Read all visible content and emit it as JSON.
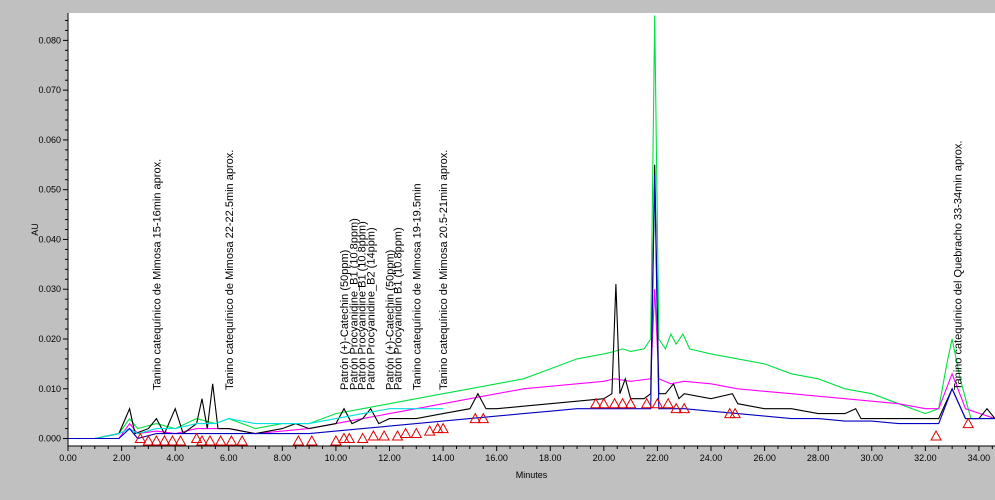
{
  "chart_data": {
    "type": "line",
    "xlabel": "Minutes",
    "ylabel": "AU",
    "xlim": [
      0,
      34.6
    ],
    "ylim": [
      -0.0015,
      0.0855
    ],
    "x_ticks": [
      "0.00",
      "2.00",
      "4.00",
      "6.00",
      "8.00",
      "10.00",
      "12.00",
      "14.00",
      "16.00",
      "18.00",
      "20.00",
      "22.00",
      "24.00",
      "26.00",
      "28.00",
      "30.00",
      "32.00",
      "34.00"
    ],
    "y_ticks": [
      "0.000",
      "0.010",
      "0.020",
      "0.030",
      "0.040",
      "0.050",
      "0.060",
      "0.070",
      "0.080"
    ],
    "grid": false,
    "legend": "none",
    "annotations": [
      {
        "x": 3.3,
        "text": "Tanino catequínico de Mimosa 15-16min aprox."
      },
      {
        "x": 6.0,
        "text": "Tanino catequínico de Mimosa 22-22.5min aprox."
      },
      {
        "x": 10.3,
        "text": "Patrón (+)-Catechin (50ppm)"
      },
      {
        "x": 10.65,
        "text": "Patrón Procyanidine_B1 (10.8ppm)"
      },
      {
        "x": 10.95,
        "text": "Patrón Procyanidine B1 (10.8ppm)"
      },
      {
        "x": 11.3,
        "text": "Patrón Procyanidine_B2 (14ppm)"
      },
      {
        "x": 12.0,
        "text": "Patrón (+)-Catechin (50ppm)"
      },
      {
        "x": 12.3,
        "text": "Patrón Procyanidin B1 (10.8ppm)"
      },
      {
        "x": 13.0,
        "text": "Tanino catequínico de Mimosa 19-19.5min"
      },
      {
        "x": 14.0,
        "text": "Tanino catequínico de Mimosa 20.5-21min aprox."
      },
      {
        "x": 33.2,
        "text": "Tanino catequínico del Quebracho 33-34min aprox."
      }
    ],
    "series": [
      {
        "color": "#00e040",
        "points": [
          [
            0,
            0
          ],
          [
            1,
            0
          ],
          [
            1.9,
            0.001
          ],
          [
            2.3,
            0.004
          ],
          [
            2.6,
            0.002
          ],
          [
            3.3,
            0.003
          ],
          [
            4.0,
            0.002
          ],
          [
            4.8,
            0.004
          ],
          [
            5.5,
            0.003
          ],
          [
            6.0,
            0.004
          ],
          [
            7.0,
            0.002
          ],
          [
            8.0,
            0.003
          ],
          [
            9.0,
            0.003
          ],
          [
            10.0,
            0.005
          ],
          [
            11.0,
            0.006
          ],
          [
            12.0,
            0.007
          ],
          [
            13.0,
            0.008
          ],
          [
            14.0,
            0.009
          ],
          [
            15.0,
            0.01
          ],
          [
            16.0,
            0.011
          ],
          [
            17.0,
            0.012
          ],
          [
            18.0,
            0.014
          ],
          [
            19.0,
            0.016
          ],
          [
            20.0,
            0.017
          ],
          [
            20.4,
            0.0175
          ],
          [
            20.7,
            0.018
          ],
          [
            21.0,
            0.0175
          ],
          [
            21.5,
            0.018
          ],
          [
            21.75,
            0.02
          ],
          [
            21.9,
            0.085
          ],
          [
            22.05,
            0.02
          ],
          [
            22.3,
            0.018
          ],
          [
            22.5,
            0.021
          ],
          [
            22.7,
            0.019
          ],
          [
            22.95,
            0.021
          ],
          [
            23.2,
            0.018
          ],
          [
            24.0,
            0.017
          ],
          [
            25.0,
            0.016
          ],
          [
            26.0,
            0.015
          ],
          [
            27.0,
            0.013
          ],
          [
            28.0,
            0.012
          ],
          [
            29.0,
            0.01
          ],
          [
            30.0,
            0.009
          ],
          [
            31.0,
            0.007
          ],
          [
            32.0,
            0.005
          ],
          [
            32.5,
            0.006
          ],
          [
            32.8,
            0.015
          ],
          [
            33.0,
            0.02
          ],
          [
            33.3,
            0.012
          ],
          [
            33.7,
            0.004
          ],
          [
            34.6,
            0.004
          ]
        ]
      },
      {
        "color": "#ff00ff",
        "points": [
          [
            0,
            0
          ],
          [
            1,
            0
          ],
          [
            1.9,
            0
          ],
          [
            2.3,
            0.003
          ],
          [
            2.6,
            0.001
          ],
          [
            3.3,
            0.0015
          ],
          [
            4.0,
            0.001
          ],
          [
            4.8,
            0.002
          ],
          [
            5.5,
            0.002
          ],
          [
            6.0,
            0.002
          ],
          [
            7.0,
            0.001
          ],
          [
            8.0,
            0.0015
          ],
          [
            9.0,
            0.002
          ],
          [
            10.0,
            0.003
          ],
          [
            11.0,
            0.004
          ],
          [
            12.0,
            0.005
          ],
          [
            13.0,
            0.006
          ],
          [
            14.0,
            0.007
          ],
          [
            15.0,
            0.008
          ],
          [
            16.0,
            0.009
          ],
          [
            17.0,
            0.01
          ],
          [
            18.0,
            0.0105
          ],
          [
            19.0,
            0.011
          ],
          [
            20.0,
            0.0115
          ],
          [
            20.4,
            0.012
          ],
          [
            21.0,
            0.0115
          ],
          [
            21.75,
            0.012
          ],
          [
            21.9,
            0.03
          ],
          [
            22.05,
            0.012
          ],
          [
            22.5,
            0.011
          ],
          [
            23.0,
            0.0115
          ],
          [
            24.0,
            0.011
          ],
          [
            25.0,
            0.01
          ],
          [
            26.0,
            0.0095
          ],
          [
            27.0,
            0.009
          ],
          [
            28.0,
            0.0085
          ],
          [
            29.0,
            0.008
          ],
          [
            30.0,
            0.0075
          ],
          [
            31.0,
            0.007
          ],
          [
            32.0,
            0.006
          ],
          [
            32.5,
            0.006
          ],
          [
            33.0,
            0.013
          ],
          [
            33.5,
            0.006
          ],
          [
            34.6,
            0.004
          ]
        ]
      },
      {
        "color": "#000000",
        "points": [
          [
            0,
            0
          ],
          [
            1,
            0
          ],
          [
            1.9,
            0.001
          ],
          [
            2.3,
            0.006
          ],
          [
            2.5,
            0.001
          ],
          [
            3.0,
            0.002
          ],
          [
            3.3,
            0.004
          ],
          [
            3.6,
            0.001
          ],
          [
            4.0,
            0.006
          ],
          [
            4.3,
            0.001
          ],
          [
            4.8,
            0.003
          ],
          [
            5.0,
            0.008
          ],
          [
            5.2,
            0.002
          ],
          [
            5.4,
            0.011
          ],
          [
            5.6,
            0.002
          ],
          [
            6.0,
            0.002
          ],
          [
            7.0,
            0.001
          ],
          [
            8.0,
            0.002
          ],
          [
            8.5,
            0.003
          ],
          [
            9.0,
            0.002
          ],
          [
            10.0,
            0.003
          ],
          [
            10.3,
            0.006
          ],
          [
            10.6,
            0.003
          ],
          [
            11.0,
            0.004
          ],
          [
            11.3,
            0.006
          ],
          [
            11.6,
            0.003
          ],
          [
            12.0,
            0.004
          ],
          [
            13.0,
            0.004
          ],
          [
            14.0,
            0.005
          ],
          [
            15.0,
            0.006
          ],
          [
            15.3,
            0.009
          ],
          [
            15.6,
            0.006
          ],
          [
            16.0,
            0.006
          ],
          [
            17.0,
            0.0065
          ],
          [
            18.0,
            0.007
          ],
          [
            19.0,
            0.0075
          ],
          [
            20.0,
            0.008
          ],
          [
            20.3,
            0.009
          ],
          [
            20.45,
            0.031
          ],
          [
            20.6,
            0.009
          ],
          [
            20.8,
            0.012
          ],
          [
            21.0,
            0.008
          ],
          [
            21.5,
            0.008
          ],
          [
            21.75,
            0.009
          ],
          [
            21.9,
            0.055
          ],
          [
            22.05,
            0.009
          ],
          [
            22.3,
            0.009
          ],
          [
            22.6,
            0.011
          ],
          [
            22.8,
            0.008
          ],
          [
            23.0,
            0.009
          ],
          [
            24.0,
            0.008
          ],
          [
            24.8,
            0.009
          ],
          [
            25.0,
            0.007
          ],
          [
            26.0,
            0.006
          ],
          [
            27.0,
            0.006
          ],
          [
            28.0,
            0.005
          ],
          [
            29.0,
            0.005
          ],
          [
            29.4,
            0.006
          ],
          [
            29.6,
            0.004
          ],
          [
            30.0,
            0.004
          ],
          [
            31.0,
            0.004
          ],
          [
            32.0,
            0.004
          ],
          [
            32.5,
            0.004
          ],
          [
            33.0,
            0.01
          ],
          [
            33.5,
            0.004
          ],
          [
            34.0,
            0.004
          ],
          [
            34.3,
            0.006
          ],
          [
            34.6,
            0.004
          ]
        ]
      },
      {
        "color": "#00e0e0",
        "points": [
          [
            0,
            0
          ],
          [
            1,
            0
          ],
          [
            1.9,
            0.001
          ],
          [
            2.3,
            0.002
          ],
          [
            2.6,
            0.001
          ],
          [
            3.3,
            0.002
          ],
          [
            4.0,
            0.002
          ],
          [
            4.8,
            0.003
          ],
          [
            5.5,
            0.003
          ],
          [
            6.0,
            0.004
          ],
          [
            7.0,
            0.003
          ],
          [
            8.0,
            0.003
          ],
          [
            9.0,
            0.003
          ],
          [
            10.0,
            0.004
          ],
          [
            11.0,
            0.005
          ],
          [
            12.0,
            0.006
          ],
          [
            13.0,
            0.006
          ],
          [
            14.0,
            0.006
          ]
        ]
      },
      {
        "color": "#0000c0",
        "points": [
          [
            0,
            0
          ],
          [
            1,
            0
          ],
          [
            1.9,
            0
          ],
          [
            2.3,
            0.002
          ],
          [
            2.6,
            0
          ],
          [
            3.3,
            0.001
          ],
          [
            4.0,
            0.001
          ],
          [
            4.8,
            0.001
          ],
          [
            5.5,
            0.001
          ],
          [
            6.0,
            0.001
          ],
          [
            7.0,
            0.001
          ],
          [
            8.0,
            0.001
          ],
          [
            9.0,
            0.001
          ],
          [
            10.0,
            0.0015
          ],
          [
            11.0,
            0.002
          ],
          [
            12.0,
            0.0025
          ],
          [
            13.0,
            0.003
          ],
          [
            14.0,
            0.0035
          ],
          [
            15.0,
            0.004
          ],
          [
            16.0,
            0.0045
          ],
          [
            17.0,
            0.005
          ],
          [
            18.0,
            0.0055
          ],
          [
            19.0,
            0.006
          ],
          [
            20.0,
            0.006
          ],
          [
            21.0,
            0.006
          ],
          [
            21.75,
            0.006
          ],
          [
            21.9,
            0.053
          ],
          [
            22.05,
            0.006
          ],
          [
            22.5,
            0.006
          ],
          [
            23.0,
            0.006
          ],
          [
            24.0,
            0.0055
          ],
          [
            25.0,
            0.005
          ],
          [
            26.0,
            0.0045
          ],
          [
            27.0,
            0.004
          ],
          [
            28.0,
            0.004
          ],
          [
            29.0,
            0.0035
          ],
          [
            30.0,
            0.0035
          ],
          [
            31.0,
            0.003
          ],
          [
            32.0,
            0.003
          ],
          [
            32.5,
            0.003
          ],
          [
            33.0,
            0.01
          ],
          [
            33.5,
            0.004
          ],
          [
            34.6,
            0.004
          ]
        ]
      }
    ],
    "markers": {
      "color": "#e00000",
      "points": [
        [
          2.7,
          0.0
        ],
        [
          3.0,
          -0.0005
        ],
        [
          3.3,
          -0.0005
        ],
        [
          3.6,
          -0.0005
        ],
        [
          3.9,
          -0.0005
        ],
        [
          4.2,
          -0.0005
        ],
        [
          4.8,
          0.0
        ],
        [
          5.0,
          -0.0005
        ],
        [
          5.3,
          -0.0005
        ],
        [
          5.7,
          -0.0005
        ],
        [
          6.1,
          -0.0005
        ],
        [
          6.5,
          -0.0005
        ],
        [
          8.6,
          -0.0005
        ],
        [
          9.1,
          -0.0005
        ],
        [
          10.0,
          -0.0005
        ],
        [
          10.3,
          0.0
        ],
        [
          10.5,
          0.0
        ],
        [
          11.0,
          0.0
        ],
        [
          11.4,
          0.0005
        ],
        [
          11.8,
          0.0005
        ],
        [
          12.3,
          0.0005
        ],
        [
          12.6,
          0.001
        ],
        [
          13.0,
          0.001
        ],
        [
          13.5,
          0.0015
        ],
        [
          13.8,
          0.002
        ],
        [
          14.0,
          0.002
        ],
        [
          15.2,
          0.004
        ],
        [
          15.5,
          0.004
        ],
        [
          19.7,
          0.007
        ],
        [
          20.0,
          0.007
        ],
        [
          20.4,
          0.007
        ],
        [
          20.7,
          0.007
        ],
        [
          21.0,
          0.007
        ],
        [
          21.6,
          0.007
        ],
        [
          22.0,
          0.007
        ],
        [
          22.4,
          0.007
        ],
        [
          22.7,
          0.006
        ],
        [
          23.0,
          0.006
        ],
        [
          24.7,
          0.005
        ],
        [
          24.9,
          0.005
        ],
        [
          32.4,
          0.0005
        ],
        [
          33.6,
          0.003
        ]
      ]
    }
  }
}
